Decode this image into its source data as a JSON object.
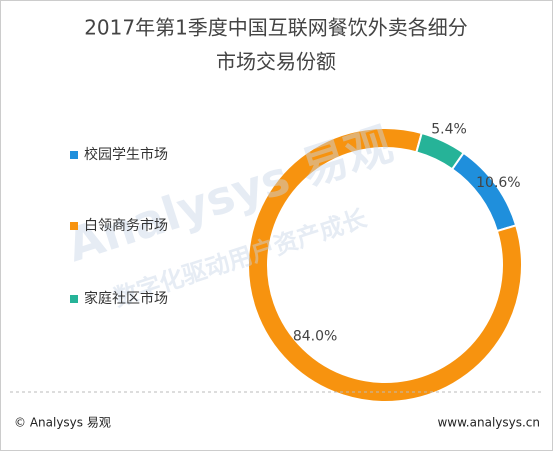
{
  "chart_data": {
    "type": "donut",
    "title": [
      "2017年第1季度中国互联网餐饮外卖各细分",
      "市场交易份额"
    ],
    "categories": [
      "校园学生市场",
      "白领商务市场",
      "家庭社区市场"
    ],
    "values": [
      10.6,
      84.0,
      5.4
    ],
    "value_labels": [
      "10.6%",
      "84.0%",
      "5.4%"
    ],
    "colors": [
      "#1f8fdc",
      "#f7930f",
      "#26b398"
    ],
    "watermark": [
      "Analysys 易观",
      "数字化驱动用户资产成长"
    ],
    "footer": {
      "left": "© Analysys 易观",
      "right": "www.analysys.cn"
    }
  }
}
